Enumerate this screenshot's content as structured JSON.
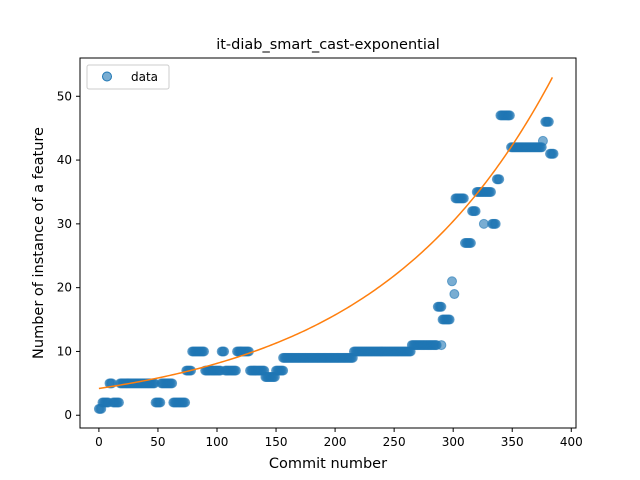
{
  "chart_data": {
    "type": "scatter",
    "title": "it-diab_smart_cast-exponential",
    "xlabel": "Commit number",
    "ylabel": "Number of instance of a feature",
    "xlim": [
      -16,
      404
    ],
    "ylim": [
      -2,
      56
    ],
    "xticks": [
      0,
      50,
      100,
      150,
      200,
      250,
      300,
      350,
      400
    ],
    "yticks": [
      0,
      10,
      20,
      30,
      40,
      50
    ],
    "legend": {
      "placement": "top-left",
      "label": "data"
    },
    "colors": {
      "points": "#1f77b4",
      "fit": "#ff7f0e"
    },
    "segments": [
      [
        0,
        2,
        1
      ],
      [
        3,
        8,
        2
      ],
      [
        9,
        11,
        5
      ],
      [
        12,
        17,
        2
      ],
      [
        18,
        47,
        5
      ],
      [
        48,
        52,
        2
      ],
      [
        53,
        62,
        5
      ],
      [
        63,
        73,
        2
      ],
      [
        74,
        78,
        7
      ],
      [
        79,
        89,
        10
      ],
      [
        90,
        103,
        7
      ],
      [
        104,
        106,
        10
      ],
      [
        107,
        116,
        7
      ],
      [
        117,
        127,
        10
      ],
      [
        128,
        140,
        7
      ],
      [
        141,
        149,
        6
      ],
      [
        150,
        156,
        7
      ],
      [
        157,
        215,
        9
      ],
      [
        216,
        264,
        10
      ],
      [
        265,
        286,
        11
      ],
      [
        287,
        290,
        17
      ],
      [
        291,
        297,
        15
      ],
      [
        302,
        309,
        34
      ],
      [
        310,
        315,
        27
      ],
      [
        316,
        319,
        32
      ],
      [
        320,
        332,
        35
      ],
      [
        333,
        336,
        30
      ],
      [
        337,
        339,
        37
      ],
      [
        340,
        348,
        47
      ],
      [
        349,
        375,
        42
      ],
      [
        378,
        381,
        46
      ],
      [
        382,
        385,
        41
      ]
    ],
    "extra_points": [
      [
        299,
        21
      ],
      [
        301,
        19
      ],
      [
        326,
        30
      ],
      [
        376,
        43
      ],
      [
        120,
        10
      ],
      [
        290,
        11
      ],
      [
        156,
        9
      ]
    ],
    "fit": {
      "a": 4.2,
      "b": 0.0066,
      "x_start": 0,
      "x_end": 385
    }
  }
}
